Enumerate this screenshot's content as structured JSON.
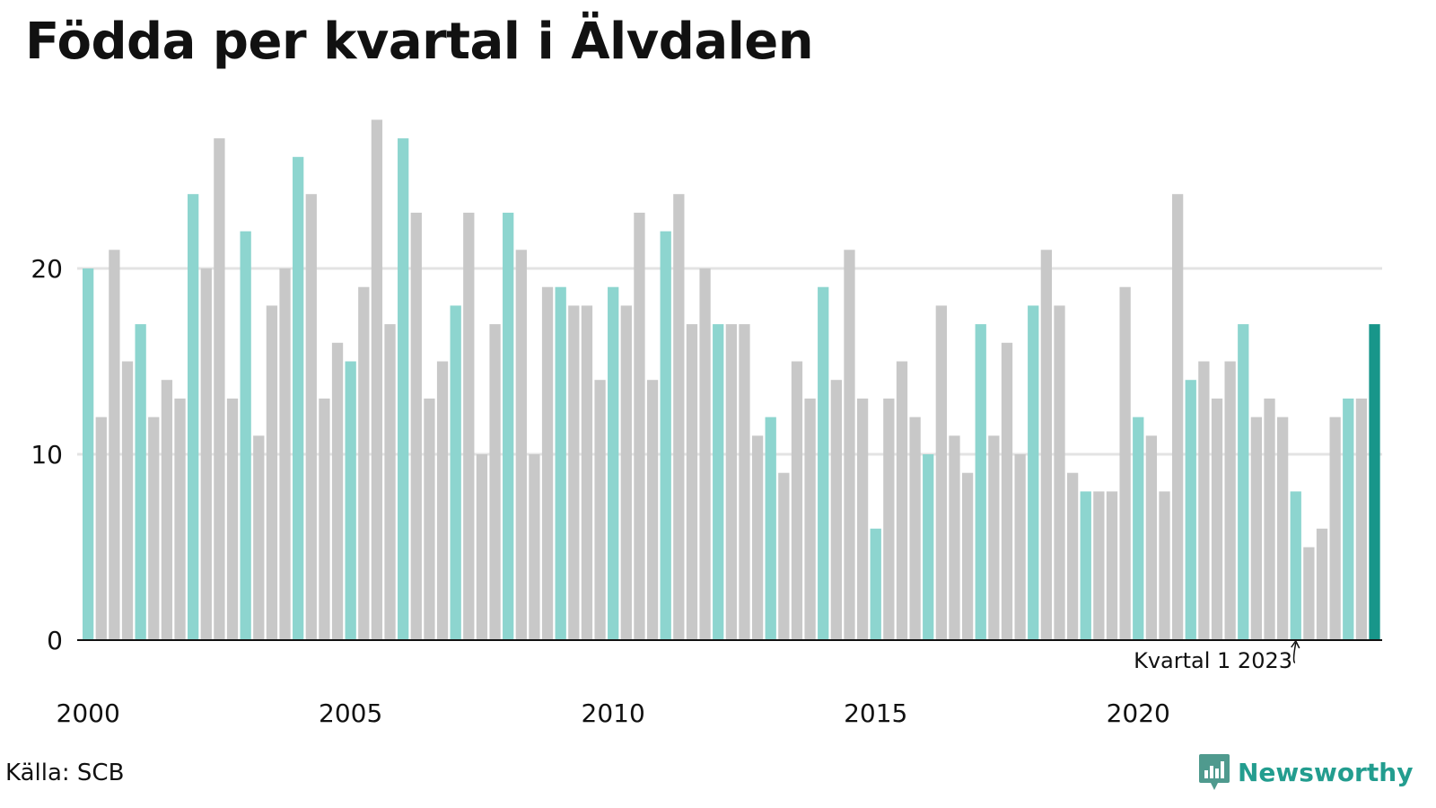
{
  "title": "Födda per kvartal i Älvdalen",
  "source": "Källa: SCB",
  "logo_text": "Newsworthy",
  "chart_data": {
    "type": "bar",
    "title": "Födda per kvartal i Älvdalen",
    "xlabel": "",
    "ylabel": "",
    "ylim": [
      0,
      29
    ],
    "yticks": [
      0,
      10,
      20
    ],
    "ytick_labels": [
      "0",
      "10",
      "20"
    ],
    "xtick_labels": [
      "2000",
      "2005",
      "2010",
      "2015",
      "2020"
    ],
    "grid": true,
    "start_year": 2000,
    "highlight_quarter": 1,
    "colors": {
      "q1": "#8dd5cf",
      "other": "#c8c8c8",
      "latest": "#18968a",
      "axis": "#111111",
      "grid": "#e3e3e3"
    },
    "annotation": {
      "text": "Kvartal 1 2023",
      "index": 92
    },
    "values": [
      20,
      12,
      21,
      15,
      17,
      12,
      14,
      13,
      24,
      20,
      27,
      13,
      22,
      11,
      18,
      20,
      26,
      24,
      13,
      16,
      15,
      19,
      28,
      17,
      27,
      23,
      13,
      15,
      18,
      23,
      10,
      17,
      23,
      21,
      10,
      19,
      19,
      18,
      18,
      14,
      19,
      18,
      23,
      14,
      22,
      24,
      17,
      20,
      17,
      17,
      17,
      11,
      12,
      9,
      15,
      13,
      19,
      14,
      21,
      13,
      6,
      13,
      15,
      12,
      10,
      18,
      11,
      9,
      17,
      11,
      16,
      10,
      18,
      21,
      18,
      9,
      8,
      8,
      8,
      19,
      12,
      11,
      8,
      24,
      14,
      15,
      13,
      15,
      17,
      12,
      13,
      12,
      8,
      5,
      6,
      12,
      13,
      13,
      17
    ]
  }
}
